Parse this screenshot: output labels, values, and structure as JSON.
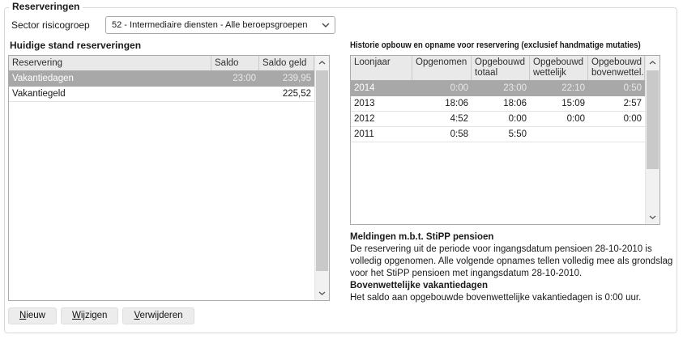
{
  "groupbox": {
    "legend": "Reserveringen"
  },
  "sector": {
    "label": "Sector risicogroep",
    "value": "52 - Intermediaire diensten - Alle beroepsgroepen"
  },
  "left_panel": {
    "title": "Huidige stand reserveringen",
    "table": {
      "columns": [
        "Reservering",
        "Saldo uren",
        "Saldo geld"
      ],
      "rows": [
        [
          "Vakantiedagen",
          "23:00",
          "239,95"
        ],
        [
          "Vakantiegeld",
          "",
          "225,52"
        ]
      ],
      "selected_row": 0
    },
    "buttons": [
      "Nieuw",
      "Wijzigen",
      "Verwijderen"
    ]
  },
  "right_panel": {
    "title": "Historie opbouw en opname voor reservering (exclusief handmatige mutaties)",
    "table": {
      "columns": [
        "Loonjaar",
        "Opgenomen",
        "Opgebouwd totaal",
        "Opgebouwd wettelijk",
        "Opgebouwd bovenwettel..."
      ],
      "rows": [
        [
          "2014",
          "0:00",
          "23:00",
          "22:10",
          "0:50"
        ],
        [
          "2013",
          "18:06",
          "18:06",
          "15:09",
          "2:57"
        ],
        [
          "2012",
          "4:52",
          "0:00",
          "0:00",
          "0:00"
        ],
        [
          "2011",
          "0:58",
          "5:50",
          "",
          ""
        ]
      ],
      "selected_row": 0
    },
    "messages": {
      "heading1": "Meldingen m.b.t. StiPP pensioen",
      "body1": "De reservering uit de periode voor ingangsdatum pensioen 28-10-2010 is volledig opgenomen. Alle volgende opnames tellen volledig mee als grondslag voor het StiPP pensioen met ingangsdatum 28-10-2010.",
      "heading2": "Bovenwettelijke vakantiedagen",
      "body2": "Het saldo aan opgebouwde bovenwettelijke vakantiedagen is 0:00 uur."
    }
  },
  "icons": {
    "dropdown_chevron": "chevron-down",
    "scroll_up": "chevron-up",
    "scroll_down": "chevron-down"
  },
  "colors": {
    "selected_row": "#a8a8a8",
    "table_header": "#e9e9e9",
    "table_border": "#ababab",
    "scrollbar_track": "#f1f1f1",
    "scrollbar_thumb": "#c9c9c9",
    "button_bg": "#ececec",
    "groupbox_border": "#d9d9d9"
  }
}
